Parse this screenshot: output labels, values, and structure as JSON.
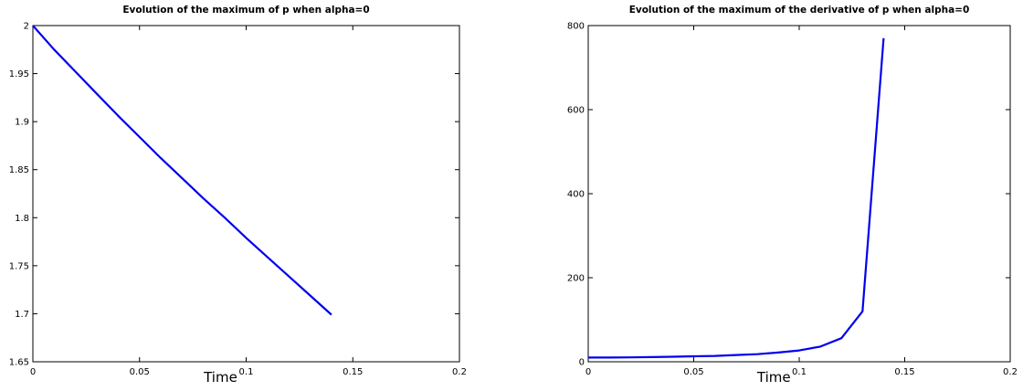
{
  "chart_data": [
    {
      "type": "line",
      "title": "Evolution of the maximum of p when alpha=0",
      "xlabel": "Time",
      "ylabel": "",
      "xlim": [
        0,
        0.2
      ],
      "ylim": [
        1.65,
        2
      ],
      "xticks": [
        "0",
        "0.05",
        "0.1",
        "0.15",
        "0.2"
      ],
      "yticks": [
        "1.65",
        "1.7",
        "1.75",
        "1.8",
        "1.85",
        "1.9",
        "1.95",
        "2"
      ],
      "grid": false,
      "color": "#0000ee",
      "series": [
        {
          "x": [
            0,
            0.01,
            0.02,
            0.03,
            0.04,
            0.05,
            0.06,
            0.07,
            0.08,
            0.09,
            0.1,
            0.11,
            0.12,
            0.13,
            0.14
          ],
          "y": [
            2.0,
            1.975,
            1.952,
            1.929,
            1.906,
            1.884,
            1.862,
            1.841,
            1.82,
            1.8,
            1.779,
            1.759,
            1.739,
            1.719,
            1.699
          ]
        }
      ]
    },
    {
      "type": "line",
      "title": "Evolution of the maximum of the derivative of p when alpha=0",
      "xlabel": "Time",
      "ylabel": "",
      "xlim": [
        0,
        0.2
      ],
      "ylim": [
        0,
        800
      ],
      "xticks": [
        "0",
        "0.05",
        "0.1",
        "0.15",
        "0.2"
      ],
      "yticks": [
        "0",
        "200",
        "400",
        "600",
        "800"
      ],
      "grid": false,
      "color": "#0000ee",
      "series": [
        {
          "x": [
            0,
            0.01,
            0.02,
            0.03,
            0.04,
            0.05,
            0.06,
            0.07,
            0.08,
            0.09,
            0.1,
            0.11,
            0.12,
            0.13,
            0.14
          ],
          "y": [
            10,
            10,
            10.5,
            11,
            12,
            13,
            14,
            16,
            18,
            22,
            27,
            36,
            56,
            120,
            770
          ]
        }
      ]
    }
  ]
}
